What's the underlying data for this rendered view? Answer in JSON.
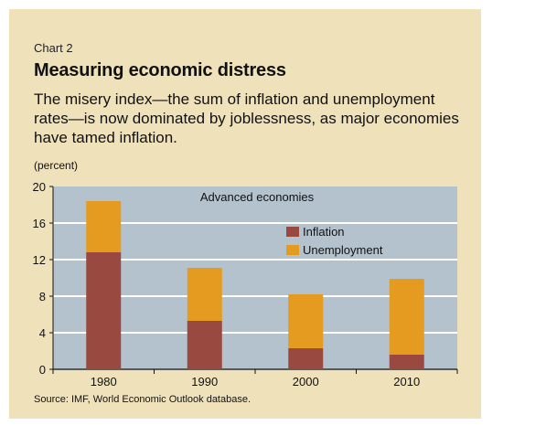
{
  "header": {
    "chart_label": "Chart 2",
    "title": "Measuring economic distress",
    "subtitle": "The misery index—the sum of inflation and unemployment rates—is now dominated by joblessness, as major economies have tamed inflation.",
    "unit": "(percent)"
  },
  "source": "Source: IMF, World Economic Outlook database.",
  "colors": {
    "background": "#efe2bb",
    "plot_background": "#b3c2cc",
    "gridline": "#ffffff",
    "inflation": "#994940",
    "unemployment": "#e59b20"
  },
  "chart_data": {
    "type": "bar",
    "stacked": true,
    "panel_title": "Advanced economies",
    "categories": [
      "1980",
      "1990",
      "2000",
      "2010"
    ],
    "series": [
      {
        "name": "Inflation",
        "values": [
          12.8,
          5.3,
          2.3,
          1.6
        ]
      },
      {
        "name": "Unemployment",
        "values": [
          5.6,
          5.8,
          5.9,
          8.3
        ]
      }
    ],
    "ylim": [
      0,
      20
    ],
    "yticks": [
      0,
      4,
      8,
      12,
      16,
      20
    ],
    "grid": true,
    "legend_position": "top-right"
  }
}
